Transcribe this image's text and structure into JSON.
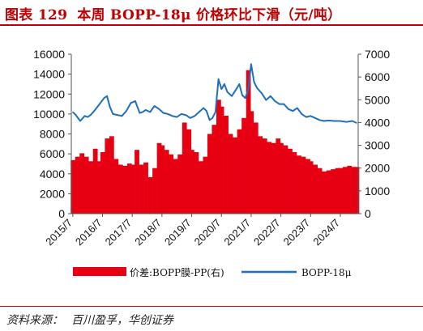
{
  "figure": {
    "label": "图表 129",
    "title": "本周 BOPP-18μ 价格环比下滑（元/吨）",
    "source_label": "资料来源：",
    "source_text": "百川盈孚，华创证券"
  },
  "colors": {
    "title": "#c00000",
    "bar": "#e60012",
    "line": "#1f6fbf",
    "axis": "#555555"
  },
  "chart_data": {
    "type": "bar",
    "legend_position": "bottom",
    "grid": false,
    "x_ticks": [
      "2015/7",
      "2016/7",
      "2017/7",
      "2018/7",
      "2019/7",
      "2020/7",
      "2021/7",
      "2022/7",
      "2023/7",
      "2024/7"
    ],
    "y_left": {
      "min": 0,
      "max": 16000,
      "ticks": [
        0,
        2000,
        4000,
        6000,
        8000,
        10000,
        12000,
        14000,
        16000
      ]
    },
    "y_right": {
      "min": 0,
      "max": 7000,
      "ticks": [
        0,
        1000,
        2000,
        3000,
        4000,
        5000,
        6000,
        7000
      ]
    },
    "series": [
      {
        "name": "价差:BOPP膜-PP(右)",
        "type": "bar",
        "axis": "right",
        "x": [
          2015.5,
          2015.65,
          2015.8,
          2015.95,
          2016.1,
          2016.25,
          2016.4,
          2016.5,
          2016.65,
          2016.8,
          2016.95,
          2017.1,
          2017.25,
          2017.4,
          2017.5,
          2017.65,
          2017.8,
          2017.95,
          2018.1,
          2018.25,
          2018.4,
          2018.5,
          2018.65,
          2018.8,
          2018.95,
          2019.1,
          2019.25,
          2019.4,
          2019.5,
          2019.65,
          2019.8,
          2019.95,
          2020.1,
          2020.25,
          2020.4,
          2020.5,
          2020.65,
          2020.8,
          2020.95,
          2021.1,
          2021.25,
          2021.4,
          2021.5,
          2021.65,
          2021.8,
          2021.95,
          2022.1,
          2022.25,
          2022.4,
          2022.5,
          2022.65,
          2022.8,
          2022.95,
          2023.1,
          2023.25,
          2023.4,
          2023.5,
          2023.65,
          2023.8,
          2023.95,
          2024.1,
          2024.25,
          2024.4,
          2024.5,
          2024.65,
          2024.8,
          2024.95,
          2025.05
        ],
        "values": [
          2350,
          2500,
          2650,
          2500,
          2300,
          2850,
          2300,
          2700,
          3300,
          3400,
          2400,
          2150,
          2100,
          2200,
          2150,
          2800,
          2150,
          2250,
          1600,
          2000,
          3100,
          3000,
          2800,
          2600,
          2400,
          2600,
          4000,
          3700,
          2800,
          2700,
          2300,
          2500,
          3500,
          3900,
          5000,
          4700,
          4300,
          3500,
          3350,
          3700,
          4200,
          6300,
          4500,
          4000,
          3400,
          3300,
          3150,
          3100,
          3300,
          3100,
          3000,
          2850,
          2700,
          2550,
          2500,
          2400,
          2300,
          2150,
          2000,
          1850,
          1900,
          1950,
          2000,
          2000,
          2050,
          2100,
          2050,
          2050
        ]
      },
      {
        "name": "BOPP-18μ",
        "type": "line",
        "axis": "left",
        "x": [
          2015.5,
          2015.6,
          2015.75,
          2015.9,
          2016.0,
          2016.1,
          2016.25,
          2016.4,
          2016.55,
          2016.65,
          2016.75,
          2016.85,
          2017.0,
          2017.15,
          2017.3,
          2017.45,
          2017.6,
          2017.75,
          2017.85,
          2017.95,
          2018.1,
          2018.25,
          2018.4,
          2018.55,
          2018.7,
          2018.85,
          2019.0,
          2019.15,
          2019.3,
          2019.45,
          2019.6,
          2019.75,
          2019.9,
          2020.0,
          2020.1,
          2020.2,
          2020.3,
          2020.4,
          2020.5,
          2020.6,
          2020.7,
          2020.85,
          2021.0,
          2021.1,
          2021.2,
          2021.3,
          2021.4,
          2021.5,
          2021.6,
          2021.7,
          2021.85,
          2022.0,
          2022.15,
          2022.3,
          2022.45,
          2022.6,
          2022.75,
          2022.9,
          2023.05,
          2023.2,
          2023.35,
          2023.5,
          2023.65,
          2023.8,
          2023.95,
          2024.1,
          2024.3,
          2024.5,
          2024.7,
          2024.9,
          2025.05
        ],
        "values": [
          10200,
          9900,
          9300,
          9800,
          9700,
          9900,
          10400,
          11000,
          11600,
          11800,
          10700,
          10000,
          9900,
          9800,
          10300,
          11100,
          11300,
          10100,
          10200,
          10400,
          10200,
          10800,
          10500,
          10100,
          10000,
          9800,
          9700,
          10000,
          9900,
          9600,
          9800,
          10200,
          10600,
          10300,
          9400,
          9600,
          10200,
          13500,
          12500,
          13000,
          12200,
          11800,
          12500,
          13000,
          11900,
          11600,
          12400,
          15000,
          13200,
          12600,
          12100,
          11400,
          11800,
          11300,
          11000,
          11000,
          10500,
          10300,
          10600,
          10000,
          9700,
          9800,
          9600,
          9400,
          9300,
          9350,
          9300,
          9300,
          9200,
          9300,
          9100
        ]
      }
    ]
  }
}
